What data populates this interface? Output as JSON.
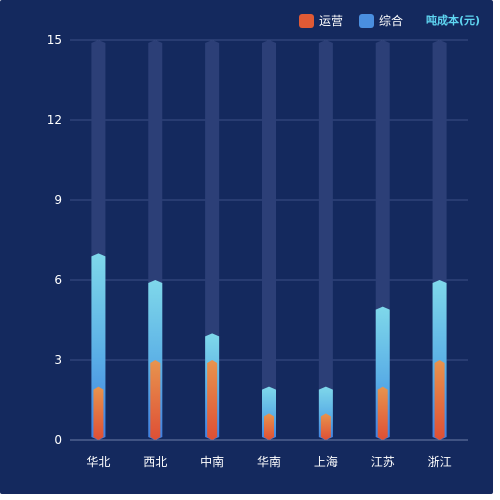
{
  "legend": {
    "items": [
      {
        "label": "运营",
        "color": "#e05a35"
      },
      {
        "label": "综合",
        "color": "#4a8fe0"
      }
    ]
  },
  "unit_label": "吨成本(元)",
  "chart_data": {
    "type": "bar",
    "categories": [
      "华北",
      "西北",
      "中南",
      "华南",
      "上海",
      "江苏",
      "浙江"
    ],
    "series": [
      {
        "name": "运营",
        "values": [
          2,
          3,
          3,
          1,
          1,
          2,
          3
        ],
        "color": "#e05a35"
      },
      {
        "name": "综合",
        "values": [
          7,
          6,
          4,
          2,
          2,
          5,
          6
        ],
        "color": "#4a8fe0"
      }
    ],
    "background_max": 15,
    "ylim": [
      0,
      15
    ],
    "yticks": [
      0,
      3,
      6,
      9,
      12,
      15
    ],
    "grid": true,
    "legend_position": "top-right"
  }
}
